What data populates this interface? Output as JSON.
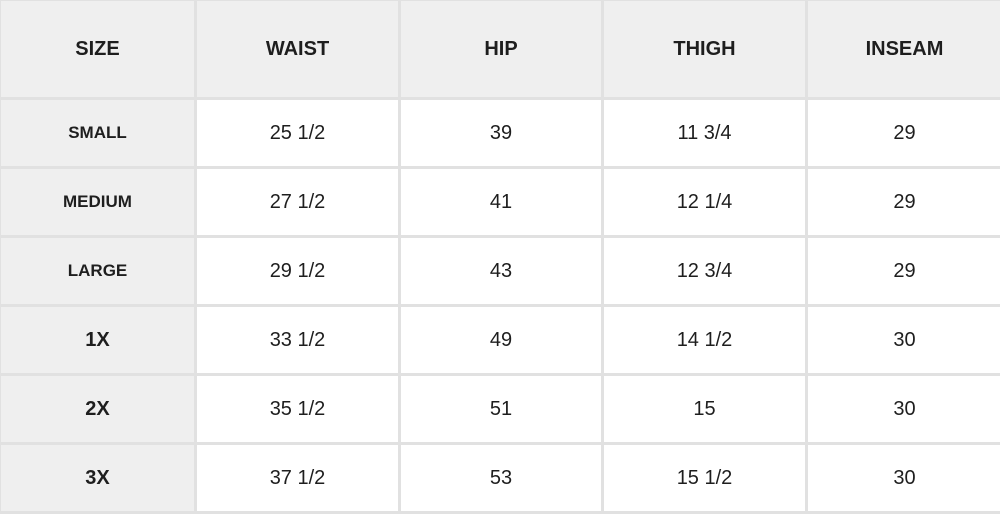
{
  "headers": [
    "SIZE",
    "WAIST",
    "HIP",
    "THIGH",
    "INSEAM"
  ],
  "rows": [
    [
      "SMALL",
      "25 1/2",
      "39",
      "11 3/4",
      "29"
    ],
    [
      "MEDIUM",
      "27 1/2",
      "41",
      "12 1/4",
      "29"
    ],
    [
      "LARGE",
      "29 1/2",
      "43",
      "12 3/4",
      "29"
    ],
    [
      "1X",
      "33 1/2",
      "49",
      "14 1/2",
      "30"
    ],
    [
      "2X",
      "35 1/2",
      "51",
      "15",
      "30"
    ],
    [
      "3X",
      "37 1/2",
      "53",
      "15 1/2",
      "30"
    ]
  ]
}
